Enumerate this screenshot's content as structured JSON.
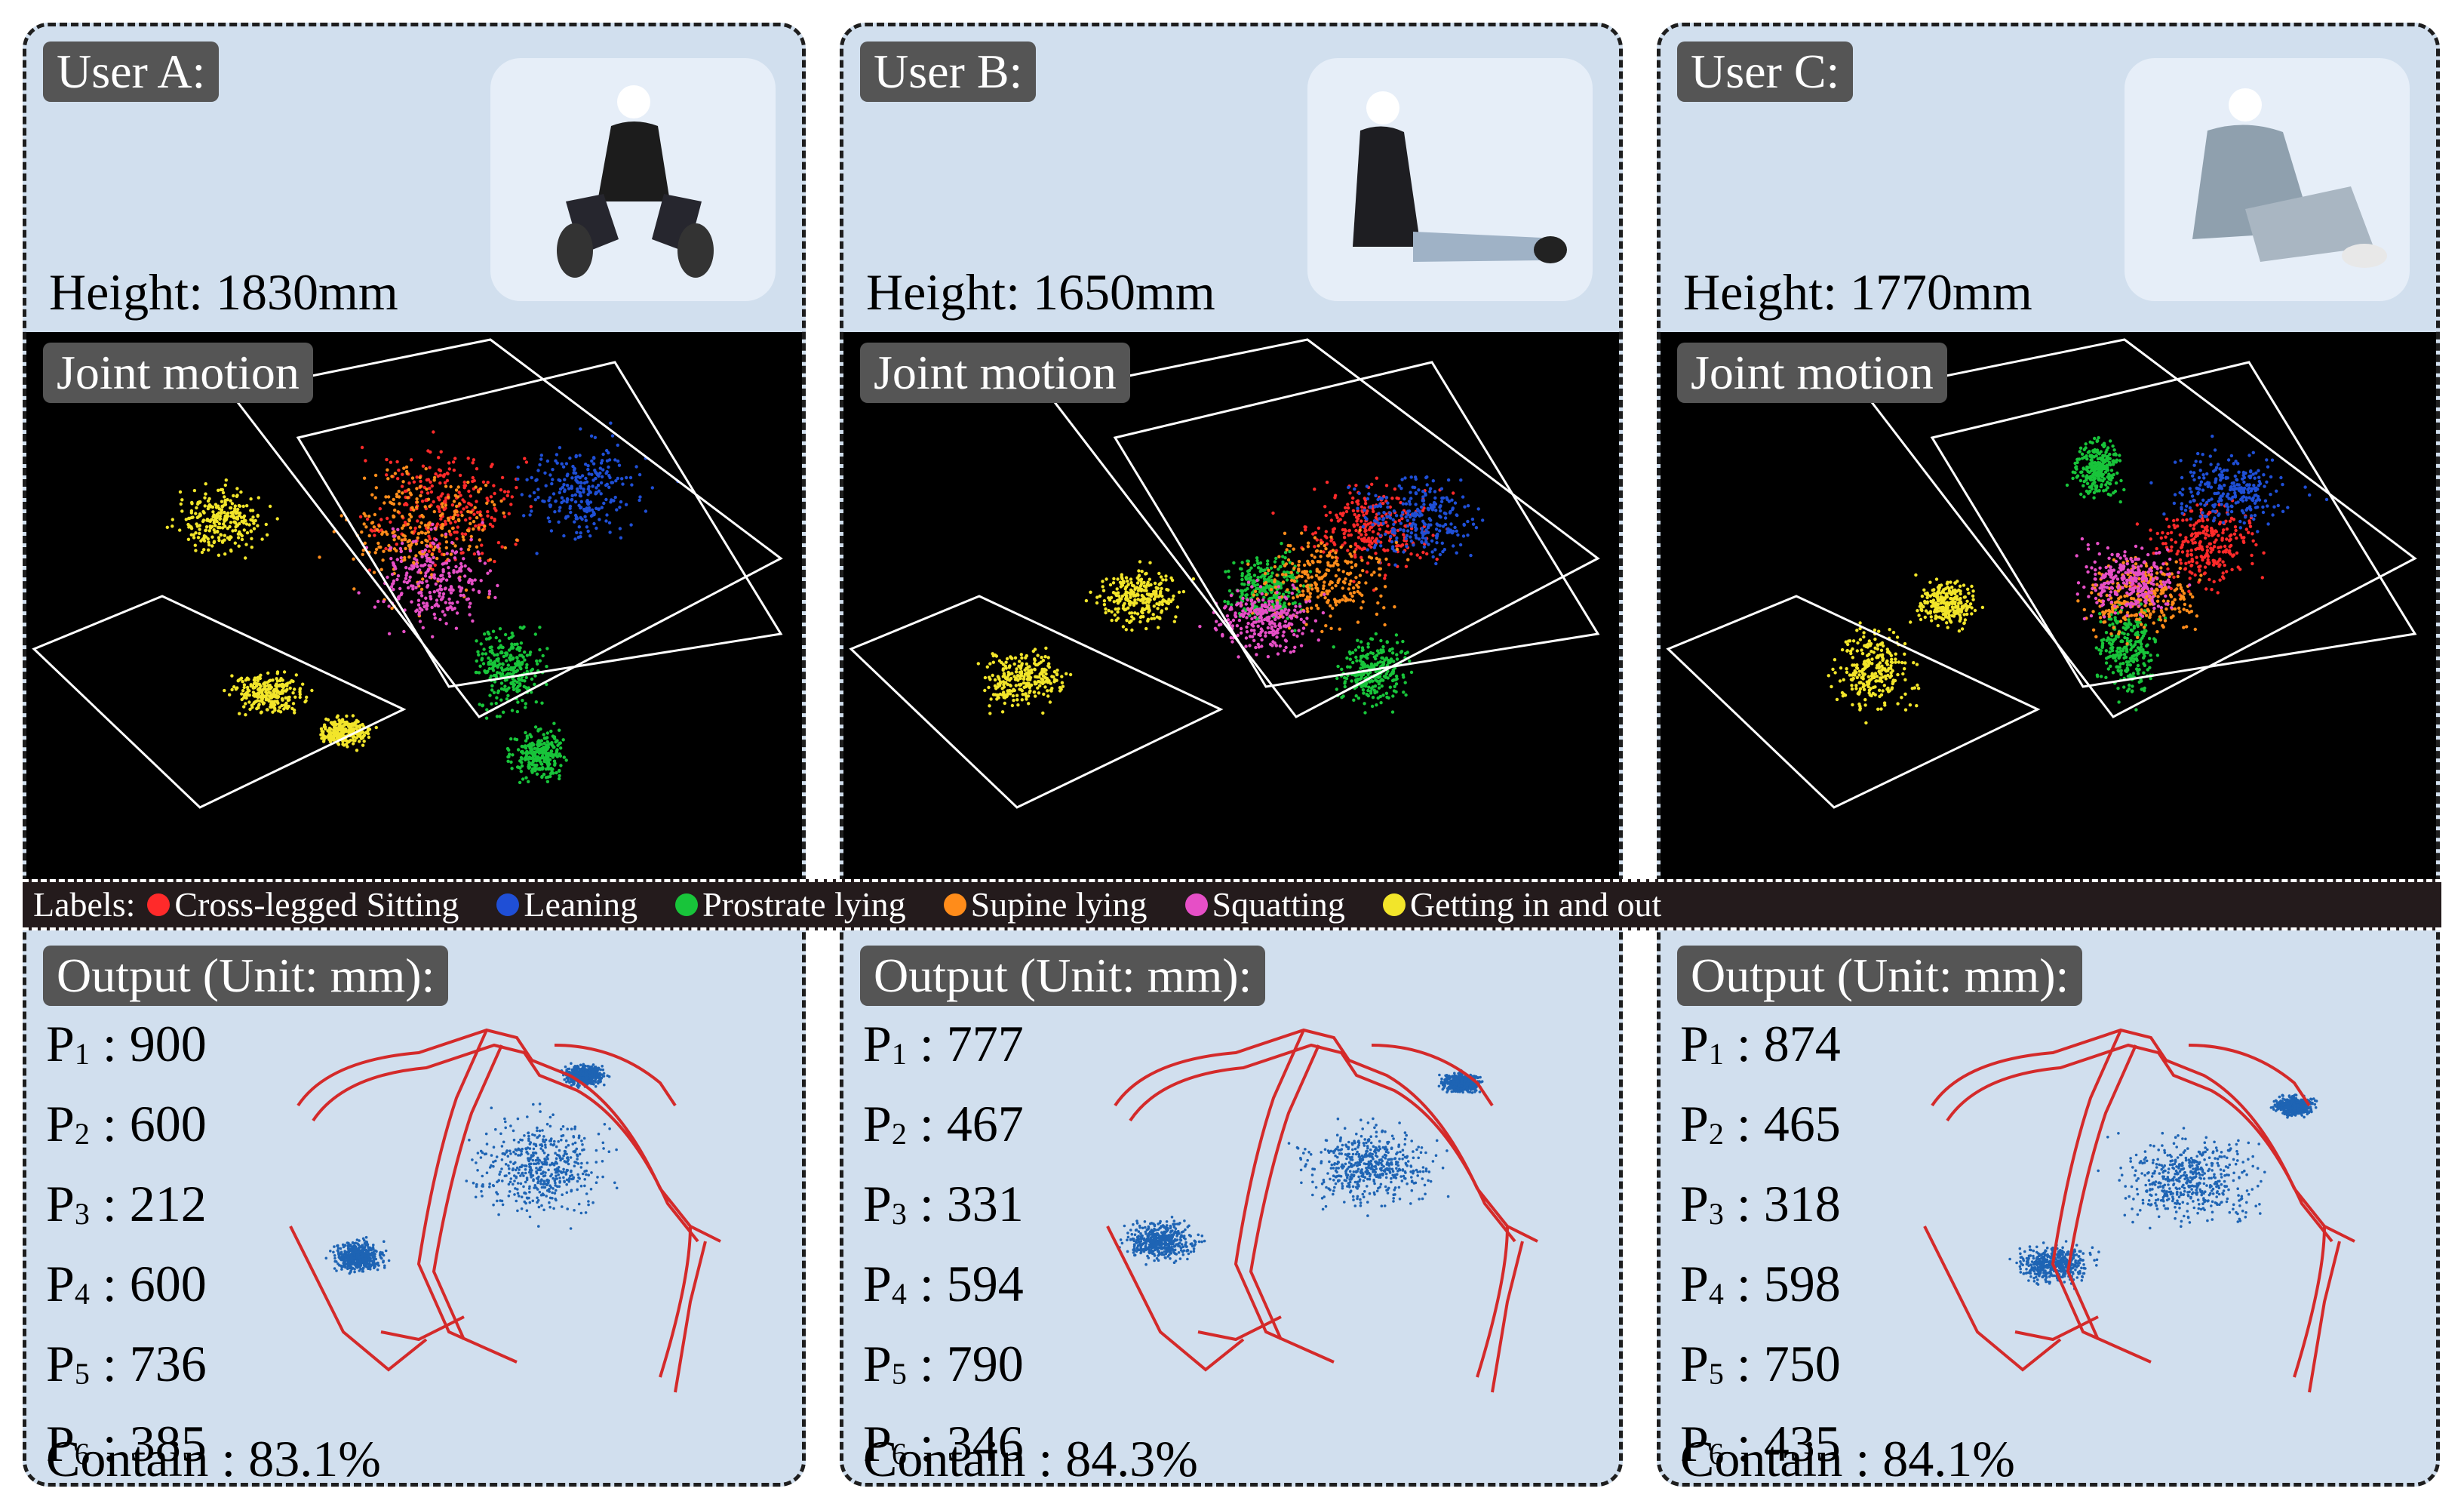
{
  "labels_prefix": "Labels:",
  "legend": [
    {
      "label": "Cross-legged Sitting",
      "color": "#ff2a2a"
    },
    {
      "label": "Leaning",
      "color": "#1f4fd6"
    },
    {
      "label": "Prostrate lying",
      "color": "#18c43a"
    },
    {
      "label": "Supine lying",
      "color": "#ff8c1a"
    },
    {
      "label": "Squatting",
      "color": "#e64fc6"
    },
    {
      "label": "Getting in and out",
      "color": "#f2e52a"
    }
  ],
  "joint_title": "Joint motion",
  "output_title": "Output (Unit: mm):",
  "users": [
    {
      "name": "User A:",
      "height": "Height: 1830mm",
      "params": [
        {
          "sym": "P",
          "sub": "1",
          "value": ": 900"
        },
        {
          "sym": "P",
          "sub": "2",
          "value": ": 600"
        },
        {
          "sym": "P",
          "sub": "3",
          "value": ": 212"
        },
        {
          "sym": "P",
          "sub": "4",
          "value": ": 600"
        },
        {
          "sym": "P",
          "sub": "5",
          "value": ": 736"
        },
        {
          "sym": "P",
          "sub": "6",
          "value": ": 385"
        }
      ],
      "contain": "Contain : 83.1%"
    },
    {
      "name": "User B:",
      "height": "Height: 1650mm",
      "params": [
        {
          "sym": "P",
          "sub": "1",
          "value": ": 777"
        },
        {
          "sym": "P",
          "sub": "2",
          "value": ": 467"
        },
        {
          "sym": "P",
          "sub": "3",
          "value": ": 331"
        },
        {
          "sym": "P",
          "sub": "4",
          "value": ": 594"
        },
        {
          "sym": "P",
          "sub": "5",
          "value": ": 790"
        },
        {
          "sym": "P",
          "sub": "6",
          "value": ": 346"
        }
      ],
      "contain": "Contain : 84.3%"
    },
    {
      "name": "User C:",
      "height": "Height: 1770mm",
      "params": [
        {
          "sym": "P",
          "sub": "1",
          "value": ": 874"
        },
        {
          "sym": "P",
          "sub": "2",
          "value": ": 465"
        },
        {
          "sym": "P",
          "sub": "3",
          "value": ": 318"
        },
        {
          "sym": "P",
          "sub": "4",
          "value": ": 598"
        },
        {
          "sym": "P",
          "sub": "5",
          "value": ": 750"
        },
        {
          "sym": "P",
          "sub": "6",
          "value": ": 435"
        }
      ],
      "contain": "Contain : 84.1%"
    }
  ],
  "colors": {
    "frame_bg": "#d1dfee",
    "joint_bg": "#000000",
    "shell": "#d42a2a",
    "cloud": "#1e64b4",
    "tag_bg": "#555555"
  }
}
